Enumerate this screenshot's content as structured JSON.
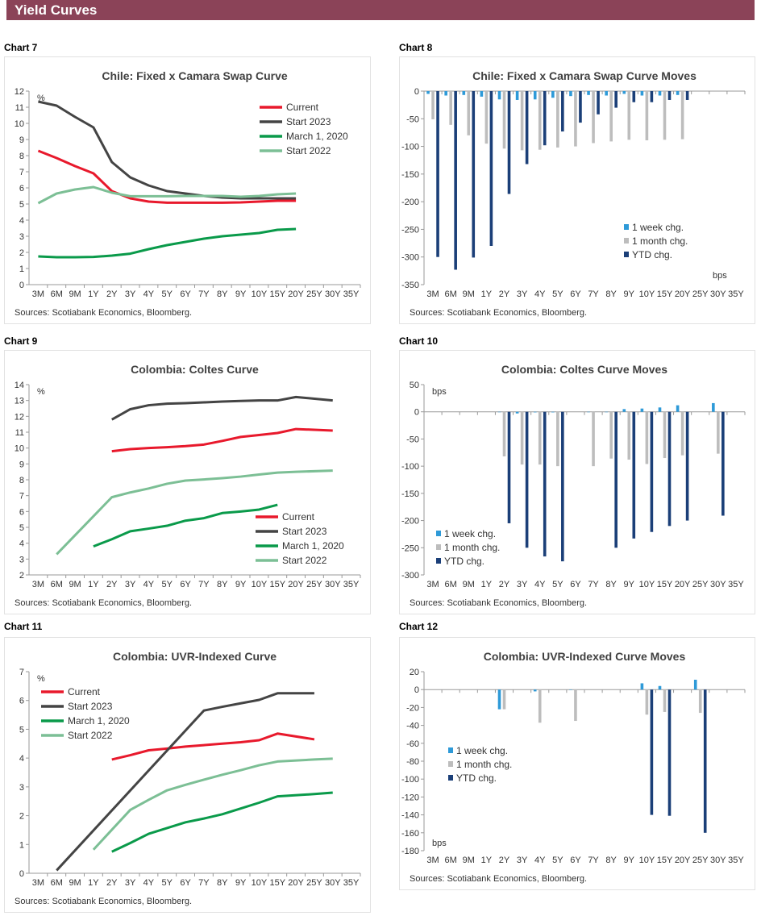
{
  "header": {
    "title": "Yield Curves"
  },
  "colors": {
    "banner": "#8b4358",
    "current": "#e8192c",
    "start2023": "#444444",
    "march2020": "#0a9a4a",
    "start2022": "#7cbf95",
    "week": "#2e9ad8",
    "month": "#bdbdbd",
    "ytd": "#1b3f78"
  },
  "chart_data": [
    {
      "id": "chart7",
      "label": "Chart 7",
      "type": "line",
      "title": "Chile: Fixed x Camara Swap Curve",
      "unit": "%",
      "source": "Sources: Scotiabank Economics, Bloomberg.",
      "ylim": [
        0,
        12
      ],
      "ystep": 1,
      "legend": "top-right",
      "categories": [
        "3M",
        "6M",
        "9M",
        "1Y",
        "2Y",
        "3Y",
        "4Y",
        "5Y",
        "6Y",
        "7Y",
        "8Y",
        "9Y",
        "10Y",
        "15Y",
        "20Y",
        "25Y",
        "30Y",
        "35Y"
      ],
      "series": [
        {
          "name": "Current",
          "color": "#e8192c",
          "values": [
            8.3,
            7.85,
            7.35,
            6.9,
            5.8,
            5.35,
            5.15,
            5.08,
            5.08,
            5.08,
            5.08,
            5.1,
            5.15,
            5.2,
            5.2,
            null,
            null,
            null
          ]
        },
        {
          "name": "Start 2023",
          "color": "#444444",
          "values": [
            11.35,
            11.1,
            10.4,
            9.75,
            7.6,
            6.65,
            6.15,
            5.8,
            5.65,
            5.5,
            5.4,
            5.35,
            5.35,
            5.35,
            5.35,
            null,
            null,
            null
          ]
        },
        {
          "name": "March 1, 2020",
          "color": "#0a9a4a",
          "values": [
            1.75,
            1.7,
            1.7,
            1.72,
            1.8,
            1.92,
            2.2,
            2.45,
            2.65,
            2.85,
            3.0,
            3.1,
            3.2,
            3.4,
            3.45,
            null,
            null,
            null
          ]
        },
        {
          "name": "Start 2022",
          "color": "#7cbf95",
          "values": [
            5.05,
            5.65,
            5.9,
            6.05,
            5.7,
            5.48,
            5.48,
            5.48,
            5.5,
            5.5,
            5.5,
            5.45,
            5.5,
            5.6,
            5.65,
            null,
            null,
            null
          ]
        }
      ]
    },
    {
      "id": "chart8",
      "label": "Chart 8",
      "type": "bar",
      "title": "Chile: Fixed x Camara Swap Curve Moves",
      "unit": "bps",
      "source": "Sources: Scotiabank Economics, Bloomberg.",
      "ylim": [
        -350,
        0
      ],
      "ystep": 50,
      "legend": "bottom-right",
      "categories": [
        "3M",
        "6M",
        "9M",
        "1Y",
        "2Y",
        "3Y",
        "4Y",
        "5Y",
        "6Y",
        "7Y",
        "8Y",
        "9Y",
        "10Y",
        "15Y",
        "20Y",
        "25Y",
        "30Y",
        "35Y"
      ],
      "series": [
        {
          "name": "1 week chg.",
          "color": "#2e9ad8",
          "values": [
            -5,
            -8,
            -7,
            -10,
            -15,
            -16,
            -15,
            -12,
            -9,
            -7,
            -8,
            -5,
            -8,
            -8,
            -7,
            null,
            null,
            null
          ]
        },
        {
          "name": "1 month chg.",
          "color": "#bdbdbd",
          "values": [
            -51,
            -61,
            -80,
            -95,
            -104,
            -107,
            -106,
            -102,
            -100,
            -94,
            -91,
            -88,
            -89,
            -88,
            -87,
            null,
            null,
            null
          ]
        },
        {
          "name": "YTD chg.",
          "color": "#1b3f78",
          "values": [
            -300,
            -323,
            -301,
            -280,
            -186,
            -132,
            -98,
            -73,
            -57,
            -42,
            -30,
            -20,
            -20,
            -16,
            -16,
            null,
            null,
            null
          ]
        }
      ]
    },
    {
      "id": "chart9",
      "label": "Chart 9",
      "type": "line",
      "title": "Colombia: Coltes Curve",
      "unit": "%",
      "source": "Sources: Scotiabank Economics, Bloomberg.",
      "ylim": [
        2,
        14
      ],
      "ystep": 1,
      "legend": "bottom-right",
      "categories": [
        "3M",
        "6M",
        "9M",
        "1Y",
        "2Y",
        "3Y",
        "4Y",
        "5Y",
        "6Y",
        "7Y",
        "8Y",
        "9Y",
        "10Y",
        "15Y",
        "20Y",
        "25Y",
        "30Y",
        "35Y"
      ],
      "series": [
        {
          "name": "Current",
          "color": "#e8192c",
          "values": [
            null,
            null,
            null,
            null,
            9.8,
            9.93,
            10.0,
            10.05,
            10.12,
            10.22,
            10.45,
            10.7,
            10.82,
            10.95,
            11.2,
            null,
            11.1,
            null
          ]
        },
        {
          "name": "Start 2023",
          "color": "#444444",
          "values": [
            null,
            null,
            null,
            null,
            11.8,
            12.45,
            12.7,
            12.8,
            12.83,
            12.88,
            12.93,
            12.97,
            13.0,
            13.0,
            13.22,
            null,
            13.0,
            null
          ]
        },
        {
          "name": "March 1, 2020",
          "color": "#0a9a4a",
          "values": [
            null,
            null,
            null,
            3.8,
            4.25,
            4.75,
            4.92,
            5.1,
            5.42,
            5.58,
            5.9,
            6.0,
            6.12,
            6.42,
            null,
            null,
            null,
            null
          ]
        },
        {
          "name": "Start 2022",
          "color": "#7cbf95",
          "values": [
            null,
            3.3,
            null,
            null,
            6.9,
            7.2,
            7.45,
            7.75,
            7.95,
            8.02,
            8.1,
            8.2,
            8.33,
            8.45,
            8.5,
            null,
            8.58,
            null
          ]
        }
      ]
    },
    {
      "id": "chart10",
      "label": "Chart 10",
      "type": "bar",
      "title": "Colombia: Coltes Curve Moves",
      "unit": "bps",
      "source": "Sources: Scotiabank Economics, Bloomberg.",
      "ylim": [
        -300,
        50
      ],
      "ystep": 50,
      "legend": "bottom-left",
      "categories": [
        "3M",
        "6M",
        "9M",
        "1Y",
        "2Y",
        "3Y",
        "4Y",
        "5Y",
        "6Y",
        "7Y",
        "8Y",
        "9Y",
        "10Y",
        "15Y",
        "20Y",
        "25Y",
        "30Y",
        "35Y"
      ],
      "series": [
        {
          "name": "1 week chg.",
          "color": "#2e9ad8",
          "values": [
            null,
            null,
            null,
            null,
            0,
            -3,
            -1,
            -1,
            null,
            0,
            0,
            5,
            6,
            8,
            12,
            null,
            16,
            null
          ]
        },
        {
          "name": "1 month chg.",
          "color": "#bdbdbd",
          "values": [
            null,
            null,
            null,
            null,
            -82,
            -97,
            -97,
            -100,
            null,
            -100,
            -86,
            -88,
            -96,
            -85,
            -80,
            null,
            -77,
            null
          ]
        },
        {
          "name": "YTD chg.",
          "color": "#1b3f78",
          "values": [
            null,
            null,
            null,
            null,
            -205,
            -250,
            -266,
            -275,
            null,
            null,
            -250,
            -233,
            -221,
            -210,
            -200,
            null,
            -191,
            null
          ]
        }
      ]
    },
    {
      "id": "chart11",
      "label": "Chart 11",
      "type": "line",
      "title": "Colombia: UVR-Indexed Curve",
      "unit": "%",
      "source": "Sources: Scotiabank Economics, Bloomberg.",
      "ylim": [
        0,
        7
      ],
      "ystep": 1,
      "legend": "top-left",
      "categories": [
        "3M",
        "6M",
        "9M",
        "1Y",
        "2Y",
        "3Y",
        "4Y",
        "5Y",
        "6Y",
        "7Y",
        "8Y",
        "9Y",
        "10Y",
        "15Y",
        "20Y",
        "25Y",
        "30Y",
        "35Y"
      ],
      "series": [
        {
          "name": "Current",
          "color": "#e8192c",
          "values": [
            null,
            null,
            null,
            null,
            3.95,
            4.1,
            4.27,
            4.33,
            4.4,
            4.45,
            4.5,
            4.55,
            4.62,
            4.85,
            null,
            4.65,
            null,
            null
          ]
        },
        {
          "name": "Start 2023",
          "color": "#444444",
          "values": [
            null,
            0.1,
            null,
            null,
            null,
            null,
            null,
            null,
            null,
            5.65,
            5.78,
            5.9,
            6.02,
            6.25,
            null,
            6.25,
            null,
            null
          ]
        },
        {
          "name": "March 1, 2020",
          "color": "#0a9a4a",
          "values": [
            null,
            null,
            null,
            null,
            0.75,
            1.05,
            1.37,
            1.57,
            1.77,
            1.9,
            2.05,
            2.25,
            2.45,
            2.67,
            null,
            2.75,
            2.8,
            null
          ]
        },
        {
          "name": "Start 2022",
          "color": "#7cbf95",
          "values": [
            null,
            null,
            null,
            0.82,
            null,
            2.2,
            2.55,
            2.88,
            3.07,
            3.25,
            3.42,
            3.58,
            3.75,
            3.88,
            null,
            3.95,
            3.98,
            null
          ]
        }
      ]
    },
    {
      "id": "chart12",
      "label": "Chart 12",
      "type": "bar",
      "title": "Colombia: UVR-Indexed Curve Moves",
      "unit": "bps",
      "source": "Sources: Scotiabank Economics, Bloomberg.",
      "ylim": [
        -180,
        20
      ],
      "ystep": 20,
      "legend": "middle-left",
      "categories": [
        "3M",
        "6M",
        "9M",
        "1Y",
        "2Y",
        "3Y",
        "4Y",
        "5Y",
        "6Y",
        "7Y",
        "8Y",
        "9Y",
        "10Y",
        "15Y",
        "20Y",
        "25Y",
        "30Y",
        "35Y"
      ],
      "series": [
        {
          "name": "1 week chg.",
          "color": "#2e9ad8",
          "values": [
            null,
            null,
            null,
            null,
            -22,
            null,
            -2,
            null,
            0,
            null,
            null,
            null,
            7,
            4,
            null,
            11,
            null,
            null
          ]
        },
        {
          "name": "1 month chg.",
          "color": "#bdbdbd",
          "values": [
            null,
            null,
            null,
            null,
            -22,
            null,
            -37,
            null,
            -35,
            null,
            null,
            null,
            -28,
            -25,
            null,
            -26,
            null,
            null
          ]
        },
        {
          "name": "YTD chg.",
          "color": "#1b3f78",
          "values": [
            null,
            null,
            null,
            null,
            null,
            null,
            null,
            null,
            null,
            null,
            null,
            null,
            -140,
            -141,
            null,
            -160,
            null,
            null
          ]
        }
      ]
    }
  ]
}
